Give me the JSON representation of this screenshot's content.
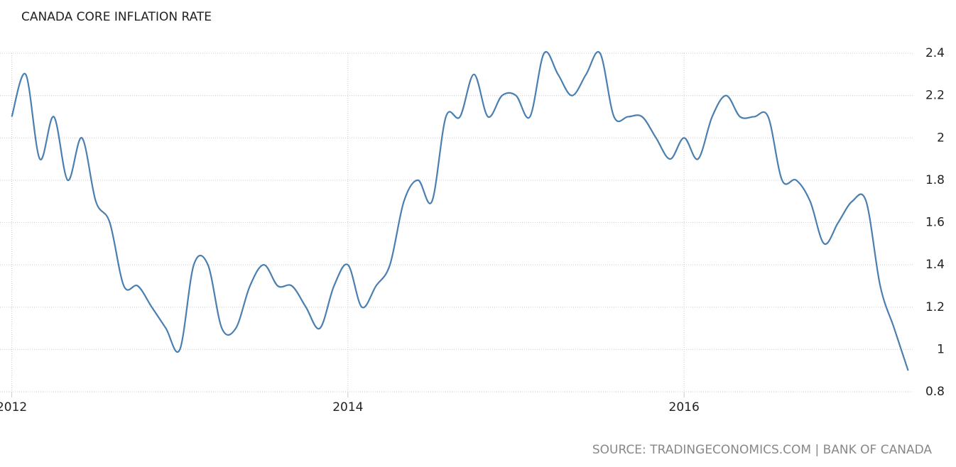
{
  "chart_data": {
    "type": "line",
    "title": "CANADA CORE INFLATION RATE",
    "source": "SOURCE: TRADINGECONOMICS.COM | BANK OF CANADA",
    "x": [
      2012,
      2012.083,
      2012.167,
      2012.25,
      2012.333,
      2012.417,
      2012.5,
      2012.583,
      2012.667,
      2012.75,
      2012.833,
      2012.917,
      2013,
      2013.083,
      2013.167,
      2013.25,
      2013.333,
      2013.417,
      2013.5,
      2013.583,
      2013.667,
      2013.75,
      2013.833,
      2013.917,
      2014,
      2014.083,
      2014.167,
      2014.25,
      2014.333,
      2014.417,
      2014.5,
      2014.583,
      2014.667,
      2014.75,
      2014.833,
      2014.917,
      2015,
      2015.083,
      2015.167,
      2015.25,
      2015.333,
      2015.417,
      2015.5,
      2015.583,
      2015.667,
      2015.75,
      2015.833,
      2015.917,
      2016,
      2016.083,
      2016.167,
      2016.25,
      2016.333,
      2016.417,
      2016.5,
      2016.583,
      2016.667,
      2016.75,
      2016.833,
      2016.917,
      2017,
      2017.083,
      2017.167,
      2017.25,
      2017.333
    ],
    "series": [
      {
        "name": "Core inflation rate",
        "color": "#4a7fb0",
        "values": [
          2.1,
          2.3,
          1.9,
          2.1,
          1.8,
          2.0,
          1.7,
          1.6,
          1.3,
          1.3,
          1.2,
          1.1,
          1.0,
          1.4,
          1.4,
          1.1,
          1.1,
          1.3,
          1.4,
          1.3,
          1.3,
          1.2,
          1.1,
          1.3,
          1.4,
          1.2,
          1.3,
          1.4,
          1.7,
          1.8,
          1.7,
          2.1,
          2.1,
          2.3,
          2.1,
          2.2,
          2.2,
          2.1,
          2.4,
          2.3,
          2.2,
          2.3,
          2.4,
          2.1,
          2.1,
          2.1,
          2.0,
          1.9,
          2.0,
          1.9,
          2.1,
          2.2,
          2.1,
          2.1,
          2.1,
          1.8,
          1.8,
          1.7,
          1.5,
          1.6,
          1.7,
          1.7,
          1.3,
          1.1,
          0.9
        ]
      }
    ],
    "xlim": [
      2011.93,
      2017.36
    ],
    "xticks": [
      2012,
      2014,
      2016
    ],
    "ylim": [
      0.8,
      2.4
    ],
    "yticks": [
      0.8,
      1,
      1.2,
      1.4,
      1.6,
      1.8,
      2,
      2.2,
      2.4
    ],
    "grid": true
  }
}
